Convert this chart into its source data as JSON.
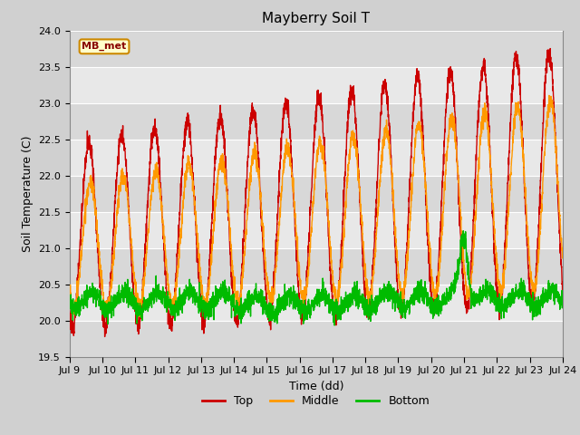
{
  "title": "Mayberry Soil T",
  "xlabel": "Time (dd)",
  "ylabel": "Soil Temperature (C)",
  "ylim": [
    19.5,
    24.0
  ],
  "xlim": [
    0,
    360
  ],
  "legend_label": "MB_met",
  "colors": {
    "top": "#cc0000",
    "middle": "#ff9900",
    "bottom": "#00bb00"
  },
  "x_ticks": [
    0,
    24,
    48,
    72,
    96,
    120,
    144,
    168,
    192,
    216,
    240,
    264,
    288,
    312,
    336,
    360
  ],
  "x_tick_labels": [
    "Jul 9",
    "Jul 10",
    "Jul 11",
    "Jul 12",
    "Jul 13",
    "Jul 14",
    "Jul 15",
    "Jul 16",
    "Jul 17",
    "Jul 18",
    "Jul 19",
    "Jul 20",
    "Jul 21",
    "Jul 22",
    "Jul 23",
    "Jul 24"
  ],
  "yticks": [
    19.5,
    20.0,
    20.5,
    21.0,
    21.5,
    22.0,
    22.5,
    23.0,
    23.5,
    24.0
  ]
}
